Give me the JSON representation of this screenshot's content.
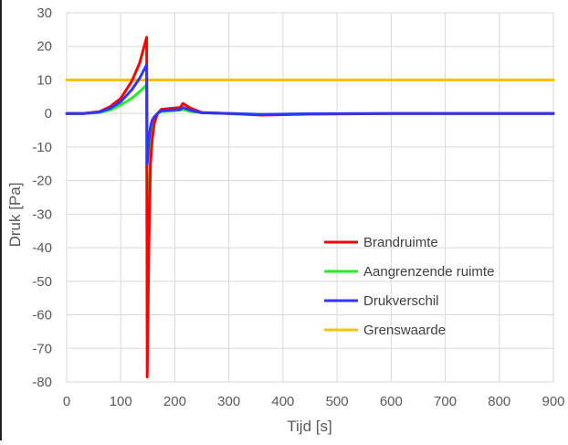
{
  "chart_data": {
    "type": "line",
    "xlabel": "Tijd [s]",
    "ylabel": "Druk [Pa]",
    "xlim": [
      0,
      900
    ],
    "ylim": [
      -80,
      30
    ],
    "xticks": [
      0,
      100,
      200,
      300,
      400,
      500,
      600,
      700,
      800,
      900
    ],
    "yticks": [
      30,
      20,
      10,
      0,
      -10,
      -20,
      -30,
      -40,
      -50,
      -60,
      -70,
      -80
    ],
    "grid": true,
    "legend_position": "lower-right",
    "series": [
      {
        "name": "Brandruimte",
        "color": "#ff0000",
        "x": [
          0,
          30,
          60,
          80,
          100,
          120,
          135,
          148,
          149,
          152,
          155,
          158,
          162,
          168,
          175,
          190,
          210,
          215,
          230,
          250,
          300,
          360,
          450,
          600,
          900
        ],
        "y": [
          0,
          0,
          0.5,
          2,
          4.5,
          9.5,
          15,
          22.7,
          -78.5,
          -40,
          -15,
          -8,
          -3,
          0,
          1.2,
          1.5,
          1.8,
          3,
          1.5,
          0.3,
          0,
          -0.5,
          -0.2,
          0,
          0
        ]
      },
      {
        "name": "Aangrenzende ruimte",
        "color": "#22ee22",
        "x": [
          0,
          30,
          60,
          80,
          100,
          120,
          135,
          148,
          149,
          152,
          155,
          158,
          162,
          168,
          175,
          190,
          210,
          215,
          230,
          250,
          300,
          360,
          450,
          600,
          900
        ],
        "y": [
          0,
          0,
          0.3,
          1,
          2.5,
          4.5,
          6.5,
          8.5,
          -64,
          -30,
          -12,
          -5,
          -2,
          0,
          0.6,
          0.7,
          1,
          1.2,
          0.6,
          0.2,
          0,
          -0.3,
          -0.1,
          0,
          0
        ]
      },
      {
        "name": "Drukverschil",
        "color": "#3333ff",
        "x": [
          0,
          30,
          60,
          80,
          100,
          120,
          135,
          148,
          149,
          152,
          155,
          158,
          162,
          168,
          175,
          190,
          210,
          215,
          230,
          250,
          300,
          360,
          450,
          600,
          900
        ],
        "y": [
          0,
          0,
          0.4,
          1.5,
          3.5,
          7,
          10.5,
          14.5,
          -15,
          -8,
          -4,
          -2,
          -1,
          0,
          0.8,
          1,
          1.2,
          1.8,
          0.9,
          0.2,
          0,
          -0.3,
          -0.1,
          0,
          0
        ]
      },
      {
        "name": "Grenswaarde",
        "color": "#ffc000",
        "x": [
          0,
          900
        ],
        "y": [
          10,
          10
        ]
      }
    ]
  }
}
